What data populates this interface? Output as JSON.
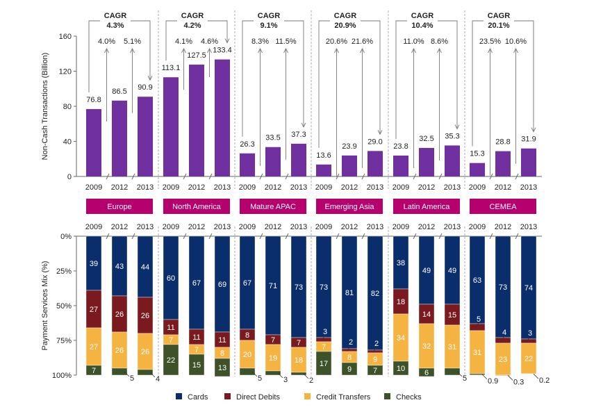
{
  "chart_data": [
    {
      "type": "bar",
      "ylabel": "Non-Cash Transactions (Billion)",
      "ylim": [
        0,
        160
      ],
      "yticks": [
        "0",
        "40",
        "80",
        "120",
        "160"
      ],
      "years": [
        "2009",
        "2012",
        "2013"
      ],
      "regions": [
        {
          "name": "Europe",
          "values": [
            76.8,
            86.5,
            90.9
          ],
          "value_labels": [
            "76.8",
            "86.5",
            "90.9"
          ],
          "cagr_title": "CAGR",
          "cagr_total": "4.3%",
          "cagr_periods": [
            "4.0%",
            "5.1%"
          ]
        },
        {
          "name": "North America",
          "values": [
            113.1,
            127.5,
            133.4
          ],
          "value_labels": [
            "113.1",
            "127.5",
            "133.4"
          ],
          "cagr_title": "CAGR",
          "cagr_total": "4.2%",
          "cagr_periods": [
            "4.1%",
            "4.6%"
          ]
        },
        {
          "name": "Mature APAC",
          "values": [
            26.3,
            33.5,
            37.3
          ],
          "value_labels": [
            "26.3",
            "33.5",
            "37.3"
          ],
          "cagr_title": "CAGR",
          "cagr_total": "9.1%",
          "cagr_periods": [
            "8.3%",
            "11.5%"
          ]
        },
        {
          "name": "Emerging Asia",
          "values": [
            13.6,
            23.9,
            29.0
          ],
          "value_labels": [
            "13.6",
            "23.9",
            "29.0"
          ],
          "cagr_title": "CAGR",
          "cagr_total": "20.9%",
          "cagr_periods": [
            "20.6%",
            "21.6%"
          ]
        },
        {
          "name": "Latin America",
          "values": [
            23.8,
            32.5,
            35.3
          ],
          "value_labels": [
            "23.8",
            "32.5",
            "35.3"
          ],
          "cagr_title": "CAGR",
          "cagr_total": "10.4%",
          "cagr_periods": [
            "11.0%",
            "8.6%"
          ]
        },
        {
          "name": "CEMEA",
          "values": [
            15.3,
            28.8,
            31.9
          ],
          "value_labels": [
            "15.3",
            "28.8",
            "31.9"
          ],
          "cagr_title": "CAGR",
          "cagr_total": "20.1%",
          "cagr_periods": [
            "23.5%",
            "10.6%"
          ]
        }
      ],
      "colors": {
        "bar": "#7030a0",
        "region_label": "#b5006e",
        "text": "#222222"
      }
    },
    {
      "type": "bar",
      "stacked": true,
      "ylabel": "Payment Services Mix (%)",
      "ylim": [
        0,
        100
      ],
      "yticks": [
        "0%",
        "25%",
        "50%",
        "75%",
        "100%"
      ],
      "years": [
        "2009",
        "2012",
        "2013"
      ],
      "legend_placement": "bottom",
      "series": [
        {
          "name": "Cards",
          "color": "#0a2d6b"
        },
        {
          "name": "Direct Debits",
          "color": "#7a1a1e"
        },
        {
          "name": "Credit Transfers",
          "color": "#f5b342"
        },
        {
          "name": "Checks",
          "color": "#3d5229"
        }
      ],
      "regions": [
        {
          "name": "Europe",
          "stacks": [
            [
              39,
              27,
              27,
              7
            ],
            [
              43,
              26,
              26,
              5
            ],
            [
              44,
              26,
              26,
              4
            ]
          ]
        },
        {
          "name": "North America",
          "stacks": [
            [
              60,
              11,
              7,
              22
            ],
            [
              67,
              11,
              7,
              15
            ],
            [
              69,
              11,
              8,
              13
            ]
          ]
        },
        {
          "name": "Mature APAC",
          "stacks": [
            [
              67,
              8,
              20,
              5
            ],
            [
              71,
              7,
              19,
              3
            ],
            [
              73,
              7,
              18,
              2
            ]
          ]
        },
        {
          "name": "Emerging Asia",
          "stacks": [
            [
              73,
              3,
              7,
              17
            ],
            [
              81,
              2,
              8,
              9
            ],
            [
              82,
              2,
              9,
              7
            ]
          ]
        },
        {
          "name": "Latin America",
          "stacks": [
            [
              38,
              18,
              34,
              10
            ],
            [
              49,
              14,
              32,
              6
            ],
            [
              49,
              15,
              31,
              5
            ]
          ]
        },
        {
          "name": "CEMEA",
          "stacks": [
            [
              63,
              5,
              31,
              0.9
            ],
            [
              73,
              4,
              23,
              0.3
            ],
            [
              74,
              3,
              22,
              0.2
            ]
          ]
        }
      ]
    }
  ]
}
